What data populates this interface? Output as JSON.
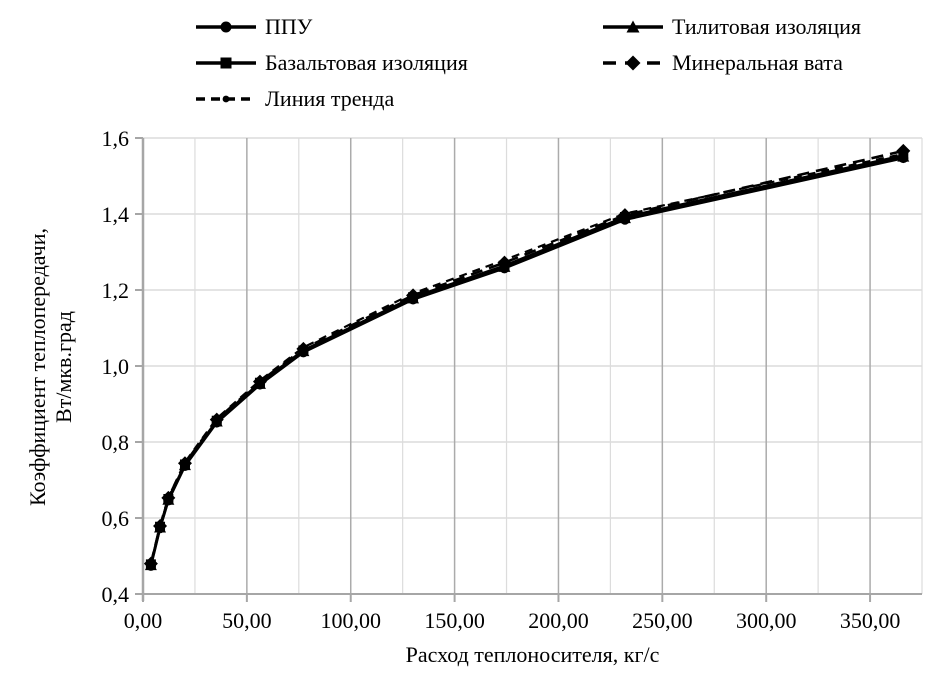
{
  "chart_data": {
    "type": "line",
    "title": "",
    "xlabel": "Расход теплоносителя, кг/с",
    "ylabel_line1": "Коэффициент теплопередачи,",
    "ylabel_line2": "Вт/мкв.град",
    "xlim": [
      0,
      375
    ],
    "ylim": [
      0.4,
      1.6
    ],
    "x_major_step": 50,
    "x_minor_step": 25,
    "y_step": 0.2,
    "grid": true,
    "legend_position": "top",
    "series_color": "#000000",
    "grid_minor_color": "#dcdcdc",
    "grid_major_color": "#ababab",
    "axis_color": "#a6a6a6",
    "xticks": [
      {
        "value": 0,
        "label": "0,00"
      },
      {
        "value": 50,
        "label": "50,00"
      },
      {
        "value": 100,
        "label": "100,00"
      },
      {
        "value": 150,
        "label": "150,00"
      },
      {
        "value": 200,
        "label": "200,00"
      },
      {
        "value": 250,
        "label": "250,00"
      },
      {
        "value": 300,
        "label": "300,00"
      },
      {
        "value": 350,
        "label": "350,00"
      }
    ],
    "yticks": [
      {
        "value": 0.4,
        "label": "0,4"
      },
      {
        "value": 0.6,
        "label": "0,6"
      },
      {
        "value": 0.8,
        "label": "0,8"
      },
      {
        "value": 1.0,
        "label": "1,0"
      },
      {
        "value": 1.2,
        "label": "1,2"
      },
      {
        "value": 1.4,
        "label": "1,4"
      },
      {
        "value": 1.6,
        "label": "1,6"
      }
    ],
    "x": [
      3.8,
      8.2,
      12.2,
      20.2,
      35.5,
      56.3,
      77.2,
      130,
      174,
      232,
      366
    ],
    "series": [
      {
        "name": "ППУ",
        "marker": "circle",
        "line_style": "solid",
        "show_markers_on_chart": true,
        "values": [
          0.474,
          0.573,
          0.646,
          0.737,
          0.851,
          0.951,
          1.036,
          1.175,
          1.257,
          1.385,
          1.547
        ]
      },
      {
        "name": "Тилитовая изоляция",
        "marker": "triangle",
        "line_style": "solid",
        "show_markers_on_chart": true,
        "values": [
          0.476,
          0.575,
          0.648,
          0.739,
          0.854,
          0.953,
          1.039,
          1.178,
          1.261,
          1.389,
          1.551
        ]
      },
      {
        "name": "Базальтовая изоляция",
        "marker": "square",
        "line_style": "solid",
        "show_markers_on_chart": true,
        "values": [
          0.478,
          0.577,
          0.65,
          0.741,
          0.856,
          0.956,
          1.041,
          1.181,
          1.264,
          1.392,
          1.554
        ]
      },
      {
        "name": "Минеральная вата",
        "marker": "diamond",
        "line_style": "dashed",
        "show_markers_on_chart": true,
        "values": [
          0.48,
          0.579,
          0.653,
          0.744,
          0.859,
          0.959,
          1.045,
          1.186,
          1.272,
          1.397,
          1.566
        ]
      },
      {
        "name": "Линия тренда",
        "marker": "dot",
        "line_style": "dash-dot",
        "show_markers_on_chart": false,
        "values": [
          0.472,
          0.577,
          0.654,
          0.747,
          0.862,
          0.962,
          1.049,
          1.191,
          1.279,
          1.401,
          1.558
        ]
      }
    ]
  }
}
